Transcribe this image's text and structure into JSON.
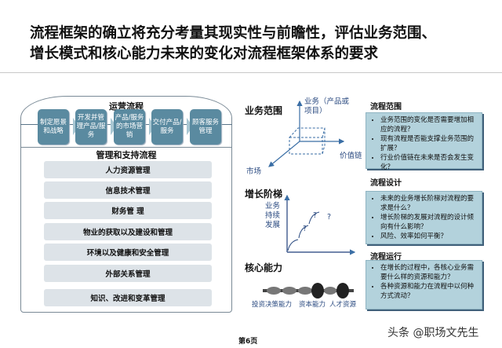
{
  "title": {
    "line1": "流程框架的确立将充分考量其现实性与前瞻性，评估业务范围、",
    "line2": "增长模式和核心能力未来的变化对流程框架体系的要求"
  },
  "left": {
    "operations_title": "运营流程",
    "processes": [
      "制定愿景和战略",
      "开发并管理产品/服务",
      "产品/服务的市场营销",
      "交付产品/服务",
      "顾客服务管理"
    ],
    "support_title": "管理和支持流程",
    "support_items": [
      "人力资源管理",
      "信息技术管理",
      "财务管 理",
      "物业的获取以及建设和管理",
      "环境以及健康和安全管理",
      "外部关系管理",
      "知识、改进和变革管理"
    ]
  },
  "middle": {
    "scope": {
      "title": "业务范围",
      "y_axis": "业务（产品或项目）",
      "x_axis": "价值链",
      "z_axis": "市场"
    },
    "growth": {
      "title": "增长阶梯",
      "y_axis": "业务持续发展",
      "marks": [
        "?",
        "?",
        "?"
      ]
    },
    "core": {
      "title": "核心能力",
      "labels": [
        "投资决策能力",
        "资本能力",
        "人才资源"
      ]
    }
  },
  "right": [
    {
      "title": "流程范围",
      "bullets": [
        "业务范围的变化是否需要增加相应的流程？",
        "现有流程是否能支撑业务范围的扩展？",
        "行业价值链在未来是否会发生变化？"
      ]
    },
    {
      "title": "流程设计",
      "bullets": [
        "未来的业务增长阶梯对流程的要求是什么？",
        "增长阶梯的发展对流程的设计倾向有什么影响？",
        "风险、效率如何平衡？"
      ]
    },
    {
      "title": "流程运行",
      "bullets": [
        "在增长的过程中，各核心业务需要什么样的资源和能力？",
        "各种资源和能力在流程中以何种方式流动？"
      ]
    }
  ],
  "footer": {
    "page": "第6页",
    "watermark": "头条 @职场文先生"
  },
  "colors": {
    "process": "#5a8aa0",
    "box": "#b3d2dc",
    "axis": "#3a6ea5"
  }
}
